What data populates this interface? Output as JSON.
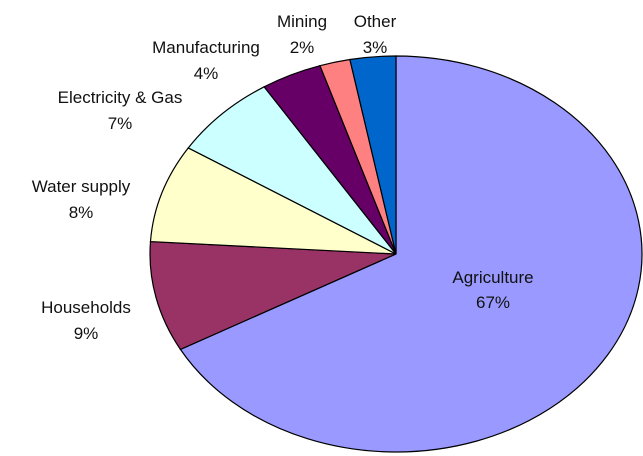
{
  "chart_data": {
    "type": "pie",
    "title": "",
    "categories": [
      "Agriculture",
      "Households",
      "Water supply",
      "Electricity & Gas",
      "Manufacturing",
      "Mining",
      "Other"
    ],
    "slice_labels": [
      "Agriculture",
      "Households",
      "Water supply",
      "Electricity & Gas",
      "Manufacturing",
      "Mining",
      "Other"
    ],
    "values": [
      67,
      9,
      8,
      7,
      4,
      2,
      3
    ],
    "value_labels": [
      "67%",
      "9%",
      "8%",
      "7%",
      "4%",
      "2%",
      "3%"
    ],
    "colors": [
      "#9999ff",
      "#993366",
      "#ffffcc",
      "#ccffff",
      "#660066",
      "#ff8080",
      "#0066cc"
    ],
    "legend": "none"
  }
}
